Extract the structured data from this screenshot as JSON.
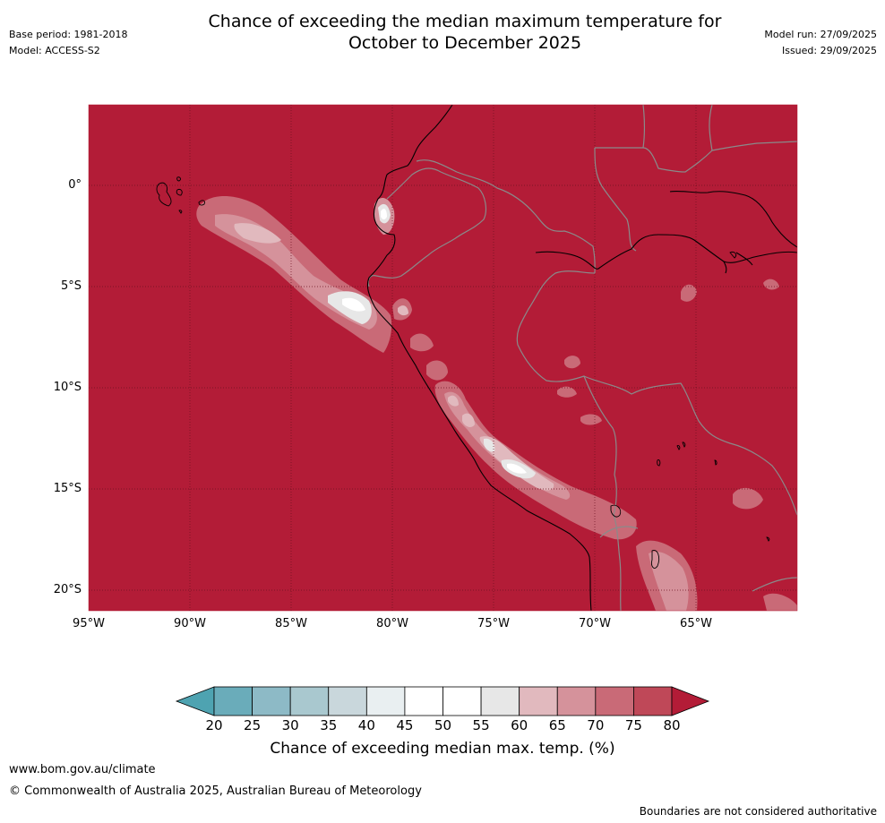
{
  "header": {
    "title_line1": "Chance of exceeding the median maximum temperature for",
    "title_line2": "October to December 2025",
    "base_period": "Base period: 1981-2018",
    "model": "Model: ACCESS-S2",
    "model_run": "Model run: 27/09/2025",
    "issued": "Issued: 29/09/2025"
  },
  "map": {
    "background_color": "#b31c37",
    "lat_labels": [
      "0°",
      "5°S",
      "10°S",
      "15°S",
      "20°S"
    ],
    "lon_labels": [
      "95°W",
      "90°W",
      "85°W",
      "80°W",
      "75°W",
      "70°W",
      "65°W"
    ]
  },
  "colorbar": {
    "ticks": [
      "20",
      "25",
      "30",
      "35",
      "40",
      "45",
      "50",
      "55",
      "60",
      "65",
      "70",
      "75",
      "80"
    ],
    "colors": [
      "#6aacba",
      "#8dbac6",
      "#a9c8cf",
      "#c9d7dc",
      "#e9eff1",
      "#ffffff",
      "#ffffff",
      "#e7e7e7",
      "#e1b9be",
      "#d5929b",
      "#c96a77",
      "#bf4858"
    ],
    "under_color": "#4ea3b1",
    "over_color": "#b31c37",
    "label": "Chance of exceeding median max. temp. (%)"
  },
  "footer": {
    "website": "www.bom.gov.au/climate",
    "copyright": "© Commonwealth of Australia 2025, Australian Bureau of Meteorology",
    "boundaries_note": "Boundaries are not considered authoritative"
  }
}
